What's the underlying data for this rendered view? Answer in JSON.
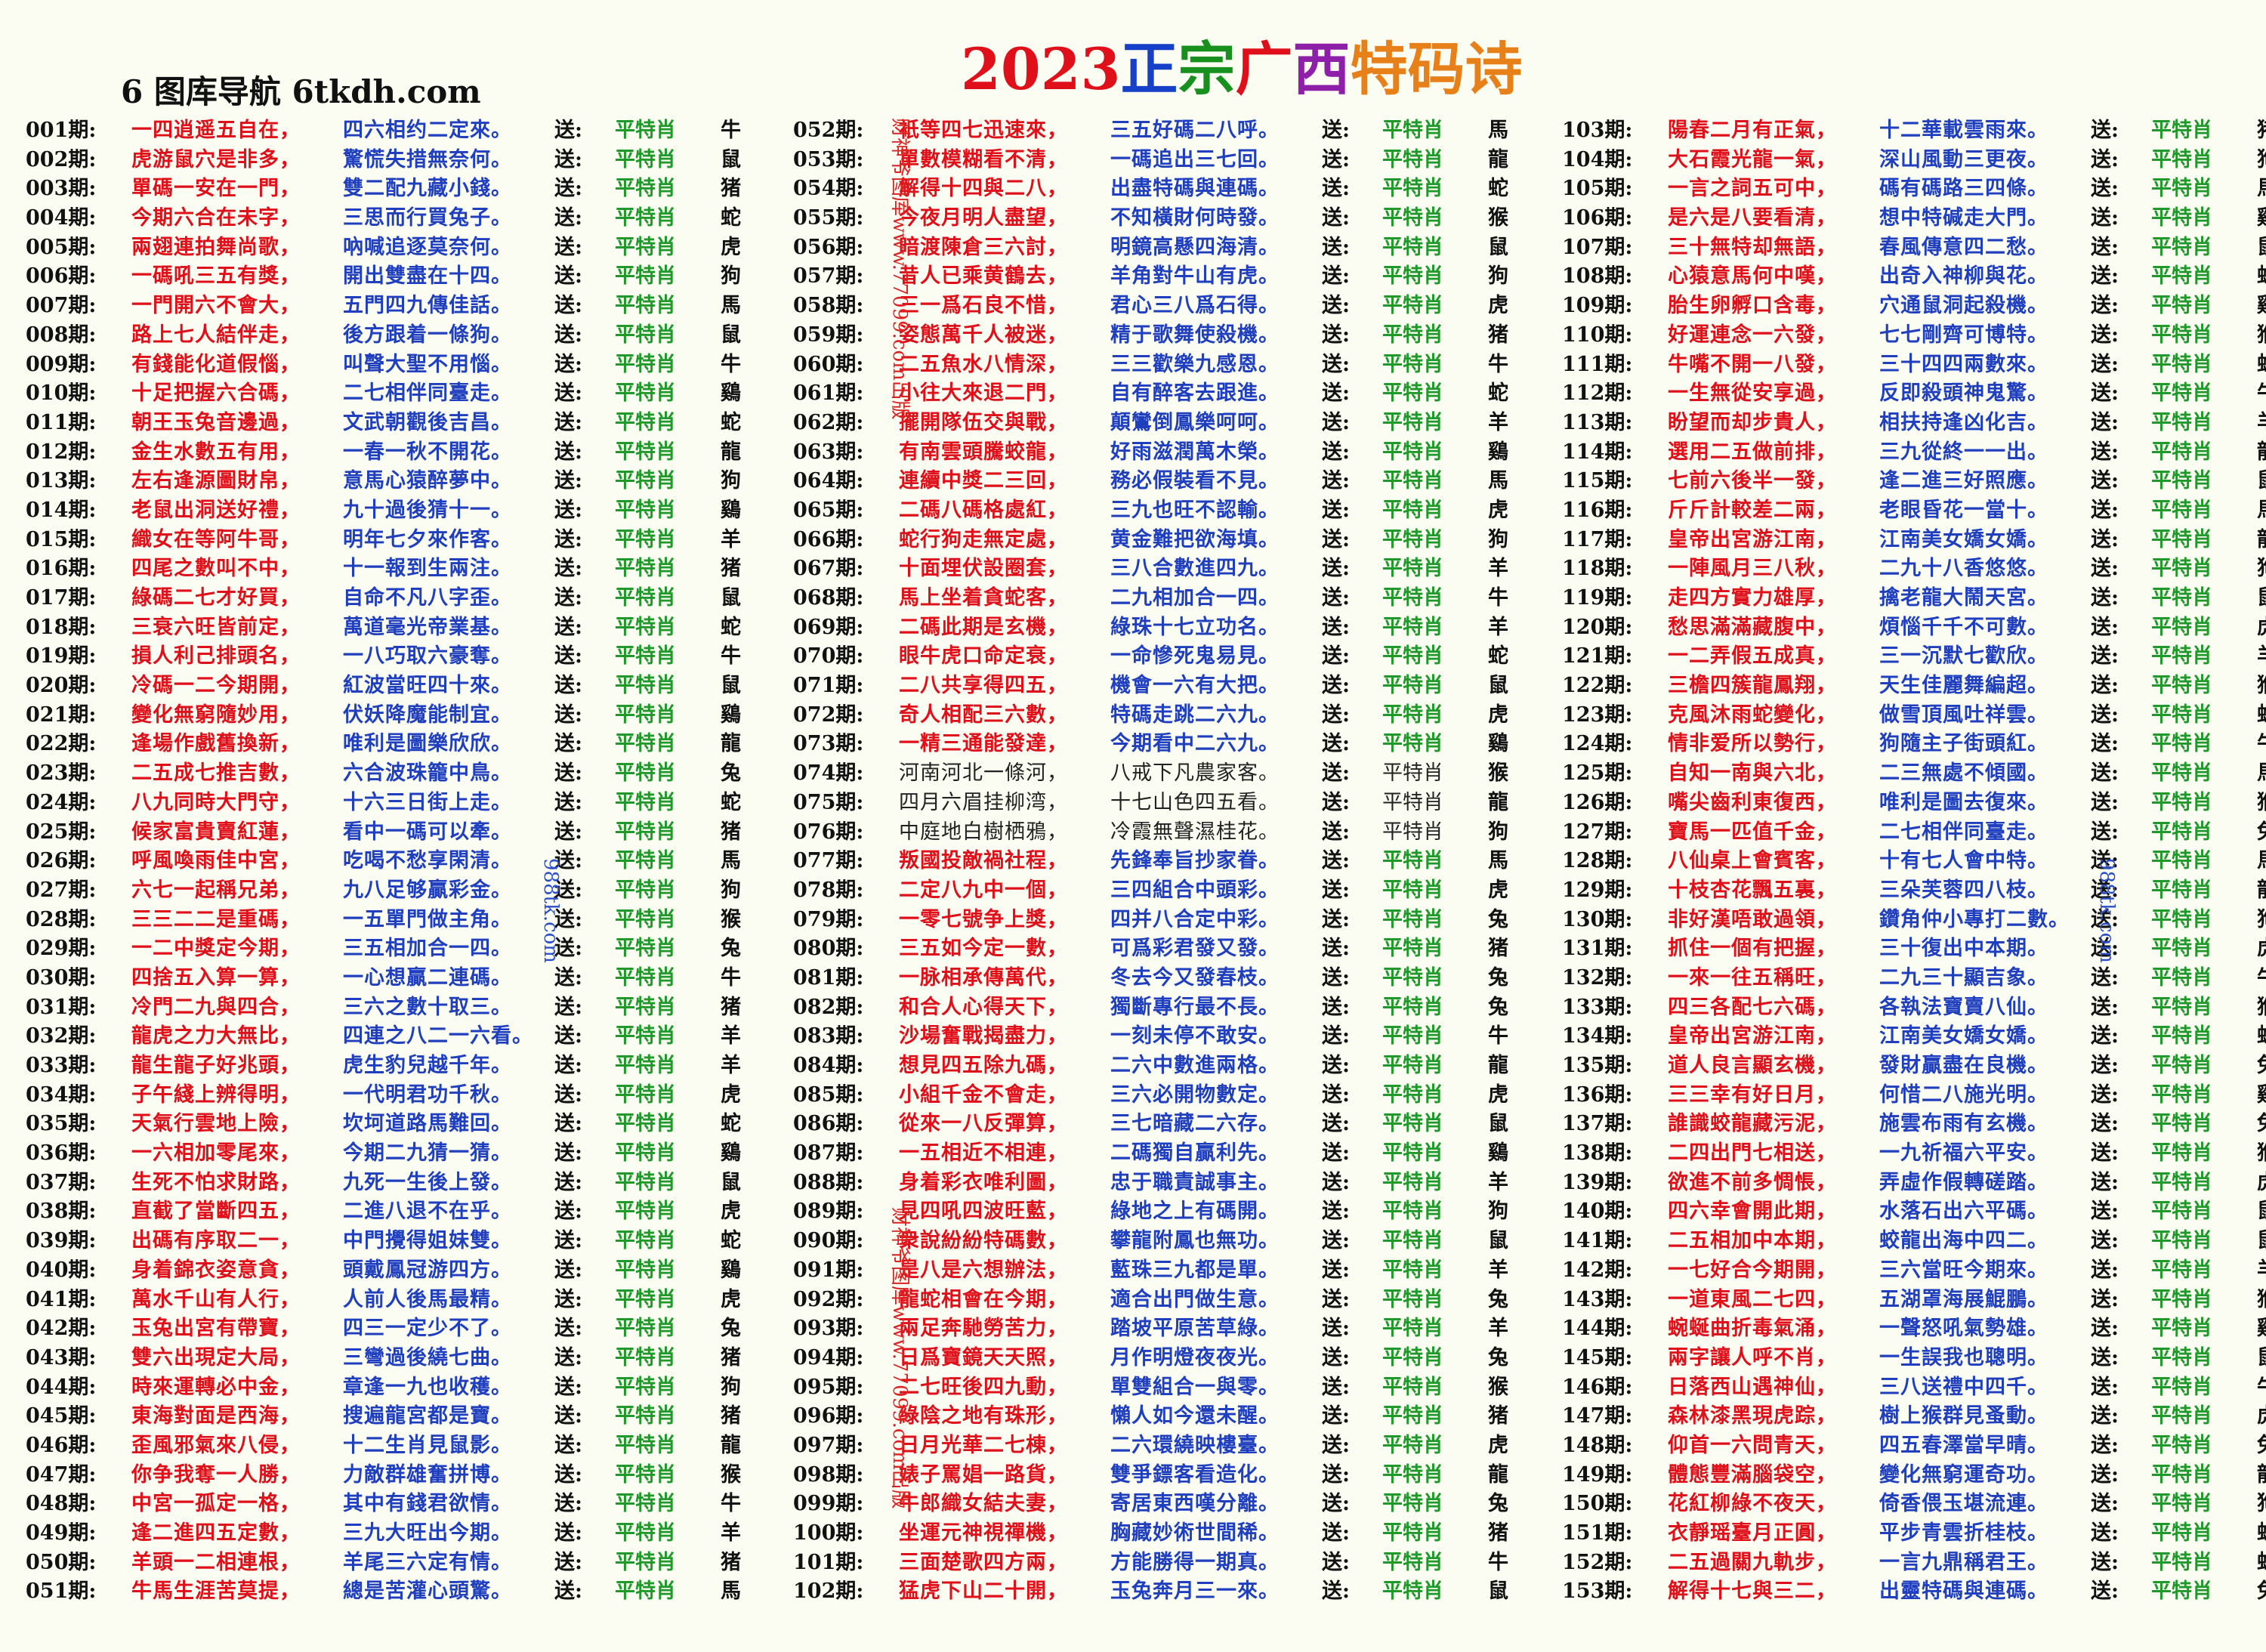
{
  "site_label": "6 图库导航 6tkdh.com",
  "title": {
    "year": "2023",
    "c1": "正",
    "c2": "宗",
    "c3": "广",
    "c4": "西",
    "c5": "特码诗"
  },
  "labels": {
    "issue_suffix": "期:",
    "send": "送:",
    "pingte": "平特肖"
  },
  "watermarks": {
    "left_red": "财神爷图库www.77099.com出版",
    "mid_blue": "988tk.com",
    "right_blue": "988tk.com"
  },
  "columns": [
    [
      [
        "001",
        "一四逍遥五自在，",
        "四六相约二定來。",
        "牛"
      ],
      [
        "002",
        "虎游鼠穴是非多，",
        "驚慌失措無奈何。",
        "鼠"
      ],
      [
        "003",
        "單碼一安在一門，",
        "雙二配九藏小錢。",
        "猪"
      ],
      [
        "004",
        "今期六合在未字，",
        "三思而行買兔子。",
        "蛇"
      ],
      [
        "005",
        "兩翅連拍舞尚歌，",
        "吶喊追逐莫奈何。",
        "虎"
      ],
      [
        "006",
        "一碼吼三五有獎，",
        "開出雙盡在十四。",
        "狗"
      ],
      [
        "007",
        "一門開六不會大，",
        "五門四九傳佳話。",
        "馬"
      ],
      [
        "008",
        "路上七人結伴走，",
        "後方跟着一條狗。",
        "鼠"
      ],
      [
        "009",
        "有錢能化道假惱，",
        "叫聲大聖不用惱。",
        "牛"
      ],
      [
        "010",
        "十足把握六合碼，",
        "二七相伴同臺走。",
        "鷄"
      ],
      [
        "011",
        "朝王玉兔音邊過，",
        "文武朝觀後吉昌。",
        "蛇"
      ],
      [
        "012",
        "金生水數五有用，",
        "一春一秋不開花。",
        "龍"
      ],
      [
        "013",
        "左右逢源圖財帛，",
        "意馬心猿醉夢中。",
        "狗"
      ],
      [
        "014",
        "老鼠出洞送好禮，",
        "九十過後猜十一。",
        "鷄"
      ],
      [
        "015",
        "織女在等阿牛哥，",
        "明年七夕來作客。",
        "羊"
      ],
      [
        "016",
        "四尾之數叫不中，",
        "十一報到生兩注。",
        "猪"
      ],
      [
        "017",
        "綠碼二七才好買，",
        "自命不凡八字歪。",
        "鼠"
      ],
      [
        "018",
        "三衰六旺皆前定，",
        "萬道毫光帝業基。",
        "蛇"
      ],
      [
        "019",
        "損人利己排頭名，",
        "一八巧取六豪奪。",
        "牛"
      ],
      [
        "020",
        "冷碼一二今期開，",
        "紅波當旺四十來。",
        "鼠"
      ],
      [
        "021",
        "變化無窮隨妙用，",
        "伏妖降魔能制宜。",
        "鷄"
      ],
      [
        "022",
        "逢場作戲舊換新，",
        "唯利是圖樂欣欣。",
        "龍"
      ],
      [
        "023",
        "二五成七推吉數，",
        "六合波珠籠中鳥。",
        "兔"
      ],
      [
        "024",
        "八九同時大門守，",
        "十六三日街上走。",
        "蛇"
      ],
      [
        "025",
        "候家富貴賣紅蓮，",
        "看中一碼可以牽。",
        "猪"
      ],
      [
        "026",
        "呼風喚雨佳中宮，",
        "吃喝不愁享閑清。",
        "馬"
      ],
      [
        "027",
        "六七一起稱兄弟，",
        "九八足够贏彩金。",
        "狗"
      ],
      [
        "028",
        "三三二二是重碼，",
        "一五單門做主角。",
        "猴"
      ],
      [
        "029",
        "一二中獎定今期，",
        "三五相加合一四。",
        "兔"
      ],
      [
        "030",
        "四捨五入算一算，",
        "一心想贏二連碼。",
        "牛"
      ],
      [
        "031",
        "冷門二九與四合，",
        "三六之數十取三。",
        "猪"
      ],
      [
        "032",
        "龍虎之力大無比，",
        "四連之八二一六看。",
        "羊"
      ],
      [
        "033",
        "龍生龍子好兆頭，",
        "虎生豹兒越千年。",
        "羊"
      ],
      [
        "034",
        "子午綫上辨得明，",
        "一代明君功千秋。",
        "虎"
      ],
      [
        "035",
        "天氣行雲地上險，",
        "坎坷道路馬難回。",
        "蛇"
      ],
      [
        "036",
        "一六相加零尾來，",
        "今期二九猜一猜。",
        "鷄"
      ],
      [
        "037",
        "生死不怕求財路，",
        "九死一生後上發。",
        "鼠"
      ],
      [
        "038",
        "直截了當斷四五，",
        "二進八退不在乎。",
        "虎"
      ],
      [
        "039",
        "出碼有序取二一，",
        "中門攪得姐妹雙。",
        "蛇"
      ],
      [
        "040",
        "身着錦衣姿意貪，",
        "頭戴鳳冠游四方。",
        "鷄"
      ],
      [
        "041",
        "萬水千山有人行，",
        "人前人後馬最精。",
        "虎"
      ],
      [
        "042",
        "玉兔出宮有帶寶，",
        "四三一定少不了。",
        "兔"
      ],
      [
        "043",
        "雙六出現定大局，",
        "三彎過後繞七曲。",
        "猪"
      ],
      [
        "044",
        "時來運轉必中金，",
        "章逢一九也收穫。",
        "狗"
      ],
      [
        "045",
        "東海對面是西海，",
        "搜遍龍宮都是寶。",
        "猪"
      ],
      [
        "046",
        "歪風邪氣來八侵，",
        "十二生肖見鼠影。",
        "龍"
      ],
      [
        "047",
        "你争我奪一人勝，",
        "力敵群雄奮拼博。",
        "猴"
      ],
      [
        "048",
        "中宮一孤定一格，",
        "其中有錢君欲情。",
        "牛"
      ],
      [
        "049",
        "逢二進四五定數，",
        "三九大旺出今期。",
        "羊"
      ],
      [
        "050",
        "羊頭一二相連根，",
        "羊尾三六定有情。",
        "猪"
      ],
      [
        "051",
        "牛馬生涯苦莫提，",
        "總是苦灌心頭驚。",
        "馬"
      ]
    ],
    [
      [
        "052",
        "衹等四七迅速來，",
        "三五好碼二八呼。",
        "馬"
      ],
      [
        "053",
        "單數模糊看不清，",
        "一碼追出三七回。",
        "龍"
      ],
      [
        "054",
        "解得十四與二八，",
        "出盡特碼與連碼。",
        "蛇"
      ],
      [
        "055",
        "今夜月明人盡望，",
        "不知橫財何時發。",
        "猴"
      ],
      [
        "056",
        "暗渡陳倉三六討，",
        "明鏡高懸四海清。",
        "鼠"
      ],
      [
        "057",
        "昔人已乘黄鶴去，",
        "羊角對牛山有虎。",
        "狗"
      ],
      [
        "058",
        "三一爲石良不惜，",
        "君心三八爲石得。",
        "虎"
      ],
      [
        "059",
        "姿態萬千人被迷，",
        "精于歌舞使殺機。",
        "猪"
      ],
      [
        "060",
        "二五魚水八情深，",
        "三三歡樂九感恩。",
        "牛"
      ],
      [
        "061",
        "小往大來退二門，",
        "自有醉客去跟進。",
        "蛇"
      ],
      [
        "062",
        "擺開隊伍交與戰，",
        "顛鸞倒鳳樂呵呵。",
        "羊"
      ],
      [
        "063",
        "有南雲頭騰蛟龍，",
        "好雨滋潤萬木榮。",
        "鷄"
      ],
      [
        "064",
        "連續中獎二三回，",
        "務必假裝看不見。",
        "馬"
      ],
      [
        "065",
        "二碼八碼格處紅，",
        "三九也旺不認輸。",
        "虎"
      ],
      [
        "066",
        "蛇行狗走無定處，",
        "黄金難把欲海填。",
        "狗"
      ],
      [
        "067",
        "十面埋伏設圈套，",
        "三八合數進四九。",
        "羊"
      ],
      [
        "068",
        "馬上坐着貪蛇客，",
        "二九相加合一四。",
        "牛"
      ],
      [
        "069",
        "二碼此期是玄機，",
        "綠珠十七立功名。",
        "羊"
      ],
      [
        "070",
        "眼牛虎口命定衰，",
        "一命慘死鬼易見。",
        "蛇"
      ],
      [
        "071",
        "二八共享得四五，",
        "機會一六有大把。",
        "鼠"
      ],
      [
        "072",
        "奇人相配三六數，",
        "特碼走跳二六九。",
        "虎"
      ],
      [
        "073",
        "一精三通能發達，",
        "今期看中二六九。",
        "鷄"
      ],
      [
        "074",
        "河南河北一條河，",
        "八戒下凡農家客。",
        "猴",
        "plain"
      ],
      [
        "075",
        "四月六眉挂柳湾，",
        "十七山色四五看。",
        "龍",
        "plain"
      ],
      [
        "076",
        "中庭地白樹栖鴉，",
        "冷霞無聲濕桂花。",
        "狗",
        "plain"
      ],
      [
        "077",
        "叛國投敵禍社程，",
        "先鋒奉旨抄家眷。",
        "馬"
      ],
      [
        "078",
        "二定八九中一個，",
        "三四組合中頭彩。",
        "虎"
      ],
      [
        "079",
        "一零七號争上獎，",
        "四并八合定中彩。",
        "兔"
      ],
      [
        "080",
        "三五如今定一數，",
        "可爲彩君發又發。",
        "猪"
      ],
      [
        "081",
        "一脉相承傳萬代，",
        "冬去今又發春枝。",
        "兔"
      ],
      [
        "082",
        "和合人心得天下，",
        "獨斷專行最不長。",
        "兔"
      ],
      [
        "083",
        "沙場奮戰揭盡力，",
        "一刻未停不敢安。",
        "牛"
      ],
      [
        "084",
        "想見四五除九碼，",
        "二六中數進兩格。",
        "龍"
      ],
      [
        "085",
        "小組千金不會走，",
        "三六必開物數定。",
        "虎"
      ],
      [
        "086",
        "從來一八反彈算，",
        "三七暗藏二六存。",
        "鼠"
      ],
      [
        "087",
        "一五相近不相連，",
        "二碼獨自贏利先。",
        "鷄"
      ],
      [
        "088",
        "身着彩衣唯利圖，",
        "忠于職責誠事主。",
        "羊"
      ],
      [
        "089",
        "見四吼四波旺藍，",
        "綠地之上有碼開。",
        "狗"
      ],
      [
        "090",
        "衆說紛紛特碼數，",
        "攀龍附鳳也無功。",
        "鼠"
      ],
      [
        "091",
        "是八是六想辦法，",
        "藍珠三九都是單。",
        "羊"
      ],
      [
        "092",
        "龍蛇相會在今期，",
        "適合出門做生意。",
        "兔"
      ],
      [
        "093",
        "兩足奔馳勞苦力，",
        "踏坡平原苦草綠。",
        "羊"
      ],
      [
        "094",
        "日爲寶鏡天天照，",
        "月作明燈夜夜光。",
        "兔"
      ],
      [
        "095",
        "二七旺後四九動，",
        "單雙組合一與零。",
        "猴"
      ],
      [
        "096",
        "綠陰之地有珠形，",
        "懶人如今還未醒。",
        "猪"
      ],
      [
        "097",
        "日月光華二七棟，",
        "二六環繞映樓臺。",
        "虎"
      ],
      [
        "098",
        "婊子罵娼一路貨，",
        "雙爭鏢客看造化。",
        "龍"
      ],
      [
        "099",
        "牛郎織女結夫妻，",
        "寄居東西嘆分離。",
        "兔"
      ],
      [
        "100",
        "坐運元神視禪機，",
        "胸藏妙術世間稀。",
        "猪"
      ],
      [
        "101",
        "三面楚歌四方兩，",
        "方能勝得一期真。",
        "牛"
      ],
      [
        "102",
        "猛虎下山二十開，",
        "玉兔奔月三一來。",
        "鼠"
      ]
    ],
    [
      [
        "103",
        "陽春二月有正氣，",
        "十二華載雲雨來。",
        "猪"
      ],
      [
        "104",
        "大石霞光龍一氣，",
        "深山風動三更夜。",
        "狗"
      ],
      [
        "105",
        "一言之詞五可中，",
        "碼有碼路三四條。",
        "馬"
      ],
      [
        "106",
        "是六是八要看清，",
        "想中特碱走大門。",
        "鷄"
      ],
      [
        "107",
        "三十無特却無語，",
        "春風傳意四二愁。",
        "鼠"
      ],
      [
        "108",
        "心猿意馬何中嘆，",
        "出奇入神柳與花。",
        "蛇"
      ],
      [
        "109",
        "胎生卵孵口含毒，",
        "穴通鼠洞起殺機。",
        "鷄"
      ],
      [
        "110",
        "好運連念一六發，",
        "七七剛齊可博特。",
        "猴"
      ],
      [
        "111",
        "牛嘴不開一八發，",
        "三十四四兩數來。",
        "蛇"
      ],
      [
        "112",
        "一生無從安享過，",
        "反即殺頭神鬼驚。",
        "牛"
      ],
      [
        "113",
        "盼望而却步貴人，",
        "相扶持逢凶化吉。",
        "羊"
      ],
      [
        "114",
        "選用二五做前排，",
        "三九從終一一出。",
        "龍"
      ],
      [
        "115",
        "七前六後半一發，",
        "逢二進三好照應。",
        "鼠"
      ],
      [
        "116",
        "斤斤計較差二兩，",
        "老眼昏花一當十。",
        "馬"
      ],
      [
        "117",
        "皇帝出宮游江南，",
        "江南美女嬌女嬌。",
        "龍"
      ],
      [
        "118",
        "一陣風月三八秋，",
        "二九十八香悠悠。",
        "狗"
      ],
      [
        "119",
        "走四方實力雄厚，",
        "擒老龍大鬧天宮。",
        "鼠"
      ],
      [
        "120",
        "愁思滿滿藏腹中，",
        "煩惱千千不可數。",
        "虎"
      ],
      [
        "121",
        "一二弄假五成真，",
        "三一沉默七歡欣。",
        "羊"
      ],
      [
        "122",
        "三檐四簇龍鳳翔，",
        "天生佳麗舞編超。",
        "猴"
      ],
      [
        "123",
        "克風沐雨蛇變化，",
        "做雪頂風吐祥雲。",
        "蛇"
      ],
      [
        "124",
        "情非爱所以勢行，",
        "狗隨主子街頭紅。",
        "牛"
      ],
      [
        "125",
        "自知一南與六北，",
        "二三無處不傾國。",
        "馬"
      ],
      [
        "126",
        "嘴尖齒利東復西，",
        "唯利是圖去復來。",
        "猴"
      ],
      [
        "127",
        "寶馬一匹值千金，",
        "二七相伴同臺走。",
        "兔"
      ],
      [
        "128",
        "八仙桌上會賓客，",
        "十有七人會中特。",
        "馬"
      ],
      [
        "129",
        "十枝杏花飄五裏，",
        "三朵芙蓉四八枝。",
        "龍"
      ],
      [
        "130",
        "非好漢唔敢過領，",
        "鑽角仲小專打二數。",
        "狗"
      ],
      [
        "131",
        "抓住一個有把握，",
        "三十復出中本期。",
        "虎"
      ],
      [
        "132",
        "一來一往五稱旺，",
        "二九三十顯吉象。",
        "牛"
      ],
      [
        "133",
        "四三各配七六碼，",
        "各執法寶賣八仙。",
        "猴"
      ],
      [
        "134",
        "皇帝出宮游江南，",
        "江南美女嬌女嬌。",
        "蛇"
      ],
      [
        "135",
        "道人良言顯玄機，",
        "發財贏盡在良機。",
        "兔"
      ],
      [
        "136",
        "三三幸有好日月，",
        "何惜二八施光明。",
        "鷄"
      ],
      [
        "137",
        "誰識蛟龍藏污泥，",
        "施雲布雨有玄機。",
        "兔"
      ],
      [
        "138",
        "二四出門七相送，",
        "一九祈福六平安。",
        "猴"
      ],
      [
        "139",
        "欲進不前多惆悵，",
        "弄虛作假轉磋踏。",
        "虎"
      ],
      [
        "140",
        "四六幸會開此期，",
        "水落石出六平碼。",
        "鼠"
      ],
      [
        "141",
        "二五相加中本期，",
        "蛟龍出海中四二。",
        "鼠"
      ],
      [
        "142",
        "一七好合今期開，",
        "三六當旺今期來。",
        "羊"
      ],
      [
        "143",
        "一道東風二七四，",
        "五湖罩海展鯤鵬。",
        "猴"
      ],
      [
        "144",
        "蜿蜒曲折毒氣涌，",
        "一聲怒吼氣勢雄。",
        "鷄"
      ],
      [
        "145",
        "兩字讓人呼不肖，",
        "一生誤我也聰明。",
        "鼠"
      ],
      [
        "146",
        "日落西山遇神仙，",
        "三八送禮中四千。",
        "牛"
      ],
      [
        "147",
        "森林漆黑現虎踪，",
        "樹上猴群見蚤動。",
        "虎"
      ],
      [
        "148",
        "仰首一六問青天，",
        "四五春澤當早晴。",
        "兔"
      ],
      [
        "149",
        "體態豐滿腦袋空，",
        "變化無窮運奇功。",
        "龍"
      ],
      [
        "150",
        "花紅柳綠不夜天，",
        "倚香偎玉堪流連。",
        "狗"
      ],
      [
        "151",
        "衣靜瑶臺月正圓，",
        "平步青雲折桂枝。",
        "蛇"
      ],
      [
        "152",
        "二五過關九軌步，",
        "一言九鼎稱君王。",
        "蛇"
      ],
      [
        "153",
        "解得十七與三二，",
        "出靈特碼與連碼。",
        "兔"
      ]
    ]
  ]
}
